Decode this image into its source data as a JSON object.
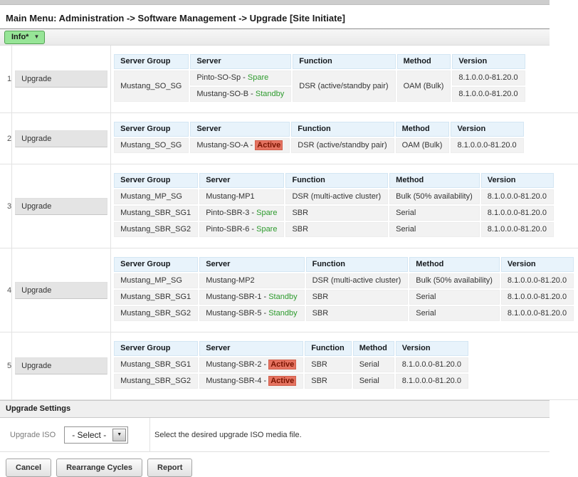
{
  "header": {
    "title": "Main Menu: Administration -> Software Management -> Upgrade [Site Initiate]"
  },
  "toolbar": {
    "info_label": "Info*",
    "caret": "▼"
  },
  "colors": {
    "accent_green_button": "#97e597",
    "table_header_bg": "#e8f3fb",
    "row_bg": "#f2f2f2",
    "status_good_text": "#2e9b2e",
    "status_active_bg": "#e57361",
    "status_active_text": "#7a1400"
  },
  "cycles": [
    {
      "number": "1",
      "action_label": "Upgrade",
      "columns": [
        "Server Group",
        "Server",
        "Function",
        "Method",
        "Version"
      ],
      "rows": [
        [
          {
            "t": "Mustang_SO_SG",
            "rs": 2
          },
          {
            "t": "Pinto-SO-Sp - ",
            "status": {
              "label": "Spare",
              "type": "good"
            }
          },
          {
            "t": "DSR (active/standby pair)",
            "rs": 2
          },
          {
            "t": "OAM (Bulk)",
            "rs": 2
          },
          {
            "t": "8.1.0.0.0-81.20.0"
          }
        ],
        [
          {
            "t": "Mustang-SO-B - ",
            "status": {
              "label": "Standby",
              "type": "good"
            }
          },
          {
            "t": "8.1.0.0.0-81.20.0"
          }
        ]
      ]
    },
    {
      "number": "2",
      "action_label": "Upgrade",
      "columns": [
        "Server Group",
        "Server",
        "Function",
        "Method",
        "Version"
      ],
      "rows": [
        [
          {
            "t": "Mustang_SO_SG"
          },
          {
            "t": "Mustang-SO-A - ",
            "status": {
              "label": "Active",
              "type": "active"
            }
          },
          {
            "t": "DSR (active/standby pair)"
          },
          {
            "t": "OAM (Bulk)"
          },
          {
            "t": "8.1.0.0.0-81.20.0"
          }
        ]
      ]
    },
    {
      "number": "3",
      "action_label": "Upgrade",
      "columns": [
        "Server Group",
        "Server",
        "Function",
        "Method",
        "Version"
      ],
      "rows": [
        [
          {
            "t": "Mustang_MP_SG"
          },
          {
            "t": "Mustang-MP1"
          },
          {
            "t": "DSR (multi-active cluster)"
          },
          {
            "t": "Bulk (50% availability)"
          },
          {
            "t": "8.1.0.0.0-81.20.0"
          }
        ],
        [
          {
            "t": "Mustang_SBR_SG1"
          },
          {
            "t": "Pinto-SBR-3 - ",
            "status": {
              "label": "Spare",
              "type": "good"
            }
          },
          {
            "t": "SBR"
          },
          {
            "t": "Serial"
          },
          {
            "t": "8.1.0.0.0-81.20.0"
          }
        ],
        [
          {
            "t": "Mustang_SBR_SG2"
          },
          {
            "t": "Pinto-SBR-6 - ",
            "status": {
              "label": "Spare",
              "type": "good"
            }
          },
          {
            "t": "SBR"
          },
          {
            "t": "Serial"
          },
          {
            "t": "8.1.0.0.0-81.20.0"
          }
        ]
      ]
    },
    {
      "number": "4",
      "action_label": "Upgrade",
      "columns": [
        "Server Group",
        "Server",
        "Function",
        "Method",
        "Version"
      ],
      "rows": [
        [
          {
            "t": "Mustang_MP_SG"
          },
          {
            "t": "Mustang-MP2"
          },
          {
            "t": "DSR (multi-active cluster)"
          },
          {
            "t": "Bulk (50% availability)"
          },
          {
            "t": "8.1.0.0.0-81.20.0"
          }
        ],
        [
          {
            "t": "Mustang_SBR_SG1"
          },
          {
            "t": "Mustang-SBR-1 - ",
            "status": {
              "label": "Standby",
              "type": "good"
            }
          },
          {
            "t": "SBR"
          },
          {
            "t": "Serial"
          },
          {
            "t": "8.1.0.0.0-81.20.0"
          }
        ],
        [
          {
            "t": "Mustang_SBR_SG2"
          },
          {
            "t": "Mustang-SBR-5 - ",
            "status": {
              "label": "Standby",
              "type": "good"
            }
          },
          {
            "t": "SBR"
          },
          {
            "t": "Serial"
          },
          {
            "t": "8.1.0.0.0-81.20.0"
          }
        ]
      ]
    },
    {
      "number": "5",
      "action_label": "Upgrade",
      "columns": [
        "Server Group",
        "Server",
        "Function",
        "Method",
        "Version"
      ],
      "rows": [
        [
          {
            "t": "Mustang_SBR_SG1"
          },
          {
            "t": "Mustang-SBR-2 - ",
            "status": {
              "label": "Active",
              "type": "active"
            }
          },
          {
            "t": "SBR"
          },
          {
            "t": "Serial"
          },
          {
            "t": "8.1.0.0.0-81.20.0"
          }
        ],
        [
          {
            "t": "Mustang_SBR_SG2"
          },
          {
            "t": "Mustang-SBR-4 - ",
            "status": {
              "label": "Active",
              "type": "active"
            }
          },
          {
            "t": "SBR"
          },
          {
            "t": "Serial"
          },
          {
            "t": "8.1.0.0.0-81.20.0"
          }
        ]
      ]
    }
  ],
  "settings": {
    "section_title": "Upgrade Settings",
    "iso_label": "Upgrade ISO",
    "iso_selected_value": "- Select -",
    "iso_caret": "▼",
    "iso_help": "Select the desired upgrade ISO media file."
  },
  "footer": {
    "buttons": [
      {
        "label": "Cancel"
      },
      {
        "label": "Rearrange Cycles"
      },
      {
        "label": "Report"
      }
    ]
  }
}
